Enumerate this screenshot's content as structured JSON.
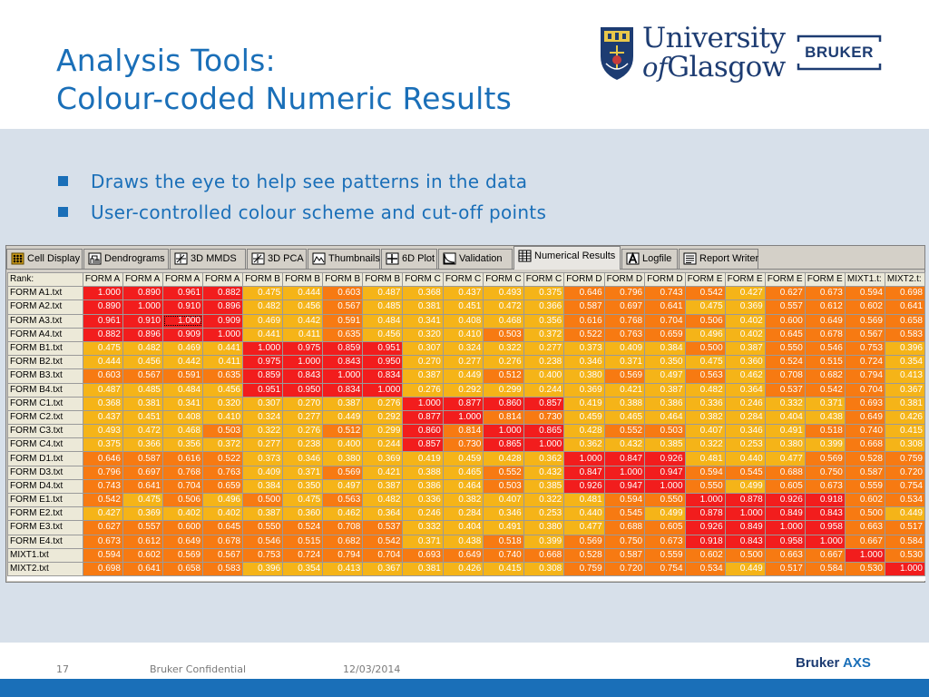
{
  "slide": {
    "title_line1": "Analysis Tools:",
    "title_line2": "Colour-coded Numeric Results",
    "bullets": [
      "Draws the eye to help see patterns in the data",
      "User-controlled colour scheme and cut-off points"
    ],
    "accent_color": "#1a6fb8",
    "band_color": "#d7e0ea"
  },
  "logos": {
    "university_line1": "University",
    "university_line2_of": "of",
    "university_line2_rest": "Glasgow",
    "bruker": "BRUKER",
    "axs_bruker": "Bruker",
    "axs_suffix": "AXS"
  },
  "footer": {
    "page_number": "17",
    "confidential": "Bruker Confidential",
    "date": "12/03/2014"
  },
  "tabs": [
    {
      "label": "Cell Display",
      "icon": "grid-dots-icon",
      "active": false
    },
    {
      "label": "Dendrograms",
      "icon": "dendrogram-icon",
      "active": false
    },
    {
      "label": "3D MMDS",
      "icon": "axes-3d-icon",
      "active": false
    },
    {
      "label": "3D PCA",
      "icon": "axes-3d-icon",
      "active": false
    },
    {
      "label": "Thumbnails",
      "icon": "thumbnail-icon",
      "active": false
    },
    {
      "label": "6D Plot",
      "icon": "axes-plot-icon",
      "active": false
    },
    {
      "label": "Validation",
      "icon": "validation-curve-icon",
      "active": false
    },
    {
      "label": "Numerical Results",
      "icon": "table-icon",
      "active": true
    },
    {
      "label": "Logfile",
      "icon": "logfile-a-icon",
      "active": false
    },
    {
      "label": "Report Writer",
      "icon": "report-icon",
      "active": false
    }
  ],
  "table": {
    "corner": "Rank:",
    "columns": [
      "FORM A",
      "FORM A",
      "FORM A",
      "FORM A",
      "FORM B",
      "FORM B",
      "FORM B",
      "FORM B",
      "FORM C",
      "FORM C",
      "FORM C",
      "FORM C",
      "FORM D",
      "FORM D",
      "FORM D",
      "FORM E",
      "FORM E",
      "FORM E",
      "FORM E",
      "MIXT1.t:",
      "MIXT2.t:"
    ],
    "row_labels": [
      "FORM A1.txt",
      "FORM A2.txt",
      "FORM A3.txt",
      "FORM A4.txt",
      "FORM B1.txt",
      "FORM B2.txt",
      "FORM B3.txt",
      "FORM B4.txt",
      "FORM C1.txt",
      "FORM C2.txt",
      "FORM C3.txt",
      "FORM C4.txt",
      "FORM D1.txt",
      "FORM D3.txt",
      "FORM D4.txt",
      "FORM E1.txt",
      "FORM E2.txt",
      "FORM E3.txt",
      "FORM E4.txt",
      "MIXT1.txt",
      "MIXT2.txt"
    ],
    "selected_cell": [
      2,
      2
    ],
    "rows": [
      [
        "1.000",
        "0.890",
        "0.961",
        "0.882",
        "0.475",
        "0.444",
        "0.603",
        "0.487",
        "0.368",
        "0.437",
        "0.493",
        "0.375",
        "0.646",
        "0.796",
        "0.743",
        "0.542",
        "0.427",
        "0.627",
        "0.673",
        "0.594",
        "0.698"
      ],
      [
        "0.890",
        "1.000",
        "0.910",
        "0.896",
        "0.482",
        "0.456",
        "0.567",
        "0.485",
        "0.381",
        "0.451",
        "0.472",
        "0.366",
        "0.587",
        "0.697",
        "0.641",
        "0.475",
        "0.369",
        "0.557",
        "0.612",
        "0.602",
        "0.641"
      ],
      [
        "0.961",
        "0.910",
        "1.000",
        "0.909",
        "0.469",
        "0.442",
        "0.591",
        "0.484",
        "0.341",
        "0.408",
        "0.468",
        "0.356",
        "0.616",
        "0.768",
        "0.704",
        "0.506",
        "0.402",
        "0.600",
        "0.649",
        "0.569",
        "0.658"
      ],
      [
        "0.882",
        "0.896",
        "0.909",
        "1.000",
        "0.441",
        "0.411",
        "0.635",
        "0.456",
        "0.320",
        "0.410",
        "0.503",
        "0.372",
        "0.522",
        "0.763",
        "0.659",
        "0.496",
        "0.402",
        "0.645",
        "0.678",
        "0.567",
        "0.583"
      ],
      [
        "0.475",
        "0.482",
        "0.469",
        "0.441",
        "1.000",
        "0.975",
        "0.859",
        "0.951",
        "0.307",
        "0.324",
        "0.322",
        "0.277",
        "0.373",
        "0.409",
        "0.384",
        "0.500",
        "0.387",
        "0.550",
        "0.546",
        "0.753",
        "0.396"
      ],
      [
        "0.444",
        "0.456",
        "0.442",
        "0.411",
        "0.975",
        "1.000",
        "0.843",
        "0.950",
        "0.270",
        "0.277",
        "0.276",
        "0.238",
        "0.346",
        "0.371",
        "0.350",
        "0.475",
        "0.360",
        "0.524",
        "0.515",
        "0.724",
        "0.354"
      ],
      [
        "0.603",
        "0.567",
        "0.591",
        "0.635",
        "0.859",
        "0.843",
        "1.000",
        "0.834",
        "0.387",
        "0.449",
        "0.512",
        "0.400",
        "0.380",
        "0.569",
        "0.497",
        "0.563",
        "0.462",
        "0.708",
        "0.682",
        "0.794",
        "0.413"
      ],
      [
        "0.487",
        "0.485",
        "0.484",
        "0.456",
        "0.951",
        "0.950",
        "0.834",
        "1.000",
        "0.276",
        "0.292",
        "0.299",
        "0.244",
        "0.369",
        "0.421",
        "0.387",
        "0.482",
        "0.364",
        "0.537",
        "0.542",
        "0.704",
        "0.367"
      ],
      [
        "0.368",
        "0.381",
        "0.341",
        "0.320",
        "0.307",
        "0.270",
        "0.387",
        "0.276",
        "1.000",
        "0.877",
        "0.860",
        "0.857",
        "0.419",
        "0.388",
        "0.386",
        "0.336",
        "0.246",
        "0.332",
        "0.371",
        "0.693",
        "0.381"
      ],
      [
        "0.437",
        "0.451",
        "0.408",
        "0.410",
        "0.324",
        "0.277",
        "0.449",
        "0.292",
        "0.877",
        "1.000",
        "0.814",
        "0.730",
        "0.459",
        "0.465",
        "0.464",
        "0.382",
        "0.284",
        "0.404",
        "0.438",
        "0.649",
        "0.426"
      ],
      [
        "0.493",
        "0.472",
        "0.468",
        "0.503",
        "0.322",
        "0.276",
        "0.512",
        "0.299",
        "0.860",
        "0.814",
        "1.000",
        "0.865",
        "0.428",
        "0.552",
        "0.503",
        "0.407",
        "0.346",
        "0.491",
        "0.518",
        "0.740",
        "0.415"
      ],
      [
        "0.375",
        "0.366",
        "0.356",
        "0.372",
        "0.277",
        "0.238",
        "0.400",
        "0.244",
        "0.857",
        "0.730",
        "0.865",
        "1.000",
        "0.362",
        "0.432",
        "0.385",
        "0.322",
        "0.253",
        "0.380",
        "0.399",
        "0.668",
        "0.308"
      ],
      [
        "0.646",
        "0.587",
        "0.616",
        "0.522",
        "0.373",
        "0.346",
        "0.380",
        "0.369",
        "0.419",
        "0.459",
        "0.428",
        "0.362",
        "1.000",
        "0.847",
        "0.926",
        "0.481",
        "0.440",
        "0.477",
        "0.569",
        "0.528",
        "0.759"
      ],
      [
        "0.796",
        "0.697",
        "0.768",
        "0.763",
        "0.409",
        "0.371",
        "0.569",
        "0.421",
        "0.388",
        "0.465",
        "0.552",
        "0.432",
        "0.847",
        "1.000",
        "0.947",
        "0.594",
        "0.545",
        "0.688",
        "0.750",
        "0.587",
        "0.720"
      ],
      [
        "0.743",
        "0.641",
        "0.704",
        "0.659",
        "0.384",
        "0.350",
        "0.497",
        "0.387",
        "0.386",
        "0.464",
        "0.503",
        "0.385",
        "0.926",
        "0.947",
        "1.000",
        "0.550",
        "0.499",
        "0.605",
        "0.673",
        "0.559",
        "0.754"
      ],
      [
        "0.542",
        "0.475",
        "0.506",
        "0.496",
        "0.500",
        "0.475",
        "0.563",
        "0.482",
        "0.336",
        "0.382",
        "0.407",
        "0.322",
        "0.481",
        "0.594",
        "0.550",
        "1.000",
        "0.878",
        "0.926",
        "0.918",
        "0.602",
        "0.534"
      ],
      [
        "0.427",
        "0.369",
        "0.402",
        "0.402",
        "0.387",
        "0.360",
        "0.462",
        "0.364",
        "0.246",
        "0.284",
        "0.346",
        "0.253",
        "0.440",
        "0.545",
        "0.499",
        "0.878",
        "1.000",
        "0.849",
        "0.843",
        "0.500",
        "0.449"
      ],
      [
        "0.627",
        "0.557",
        "0.600",
        "0.645",
        "0.550",
        "0.524",
        "0.708",
        "0.537",
        "0.332",
        "0.404",
        "0.491",
        "0.380",
        "0.477",
        "0.688",
        "0.605",
        "0.926",
        "0.849",
        "1.000",
        "0.958",
        "0.663",
        "0.517"
      ],
      [
        "0.673",
        "0.612",
        "0.649",
        "0.678",
        "0.546",
        "0.515",
        "0.682",
        "0.542",
        "0.371",
        "0.438",
        "0.518",
        "0.399",
        "0.569",
        "0.750",
        "0.673",
        "0.918",
        "0.843",
        "0.958",
        "1.000",
        "0.667",
        "0.584"
      ],
      [
        "0.594",
        "0.602",
        "0.569",
        "0.567",
        "0.753",
        "0.724",
        "0.794",
        "0.704",
        "0.693",
        "0.649",
        "0.740",
        "0.668",
        "0.528",
        "0.587",
        "0.559",
        "0.602",
        "0.500",
        "0.663",
        "0.667",
        "1.000",
        "0.530"
      ],
      [
        "0.698",
        "0.641",
        "0.658",
        "0.583",
        "0.396",
        "0.354",
        "0.413",
        "0.367",
        "0.381",
        "0.426",
        "0.415",
        "0.308",
        "0.759",
        "0.720",
        "0.754",
        "0.534",
        "0.449",
        "0.517",
        "0.584",
        "0.530",
        "1.000"
      ]
    ],
    "color_scale": {
      "cutoff_high": 0.83,
      "cutoff_mid": 0.5,
      "color_high": "#f21d1d",
      "color_mid": "#f77a12",
      "color_low": "#f5b418"
    }
  }
}
